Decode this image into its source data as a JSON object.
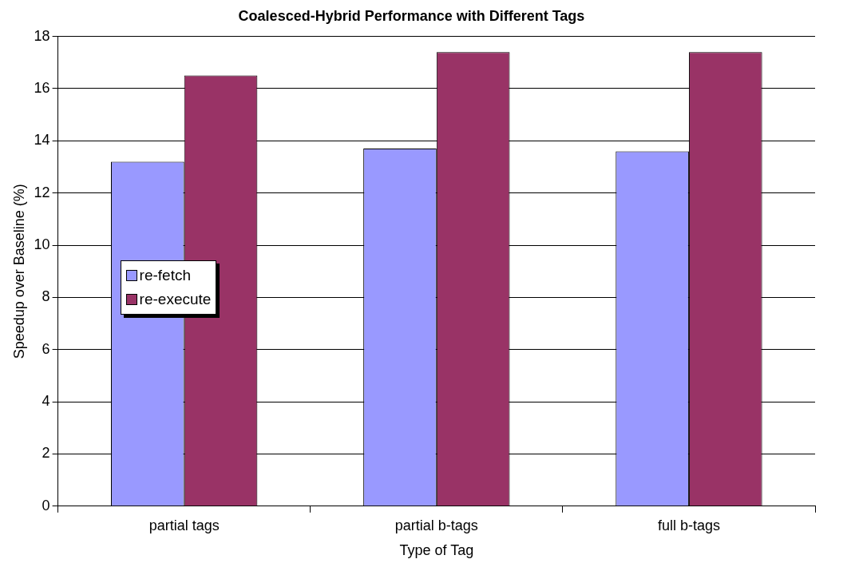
{
  "chart_data": {
    "type": "bar",
    "title": "Coalesced-Hybrid Performance with Different Tags",
    "xlabel": "Type of Tag",
    "ylabel": "Speedup over Baseline (%)",
    "categories": [
      "partial tags",
      "partial b-tags",
      "full b-tags"
    ],
    "series": [
      {
        "name": "re-fetch",
        "color": "#9999ff",
        "values": [
          13.2,
          13.7,
          13.6
        ]
      },
      {
        "name": "re-execute",
        "color": "#993366",
        "values": [
          16.5,
          17.4,
          17.4
        ]
      }
    ],
    "ylim": [
      0,
      18
    ],
    "yticks": [
      0,
      2,
      4,
      6,
      8,
      10,
      12,
      14,
      16,
      18
    ],
    "grid": "y",
    "legend": "left"
  }
}
